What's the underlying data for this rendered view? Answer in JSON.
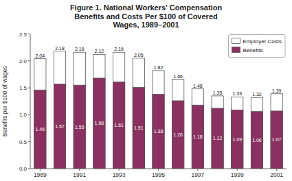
{
  "chart_data": {
    "type": "bar",
    "title": "Figure 1. National Workers' Compensation\nBenefits and Costs Per $100 of Covered\nWages, 1989–2001",
    "y_label": "Benefits per $100 of wages",
    "categories": [
      "1989",
      null,
      "1991",
      null,
      "1993",
      null,
      "1995",
      null,
      "1997",
      null,
      "1999",
      null,
      "2001"
    ],
    "series": [
      {
        "name": "Employer Costs",
        "color": "#ffffff",
        "values": [
          2.04,
          2.18,
          2.16,
          2.12,
          2.16,
          2.05,
          1.82,
          1.66,
          1.48,
          1.35,
          1.33,
          1.32,
          1.39
        ]
      },
      {
        "name": "Benefits",
        "color": "#8B3060",
        "values": [
          1.46,
          1.57,
          1.55,
          1.68,
          1.61,
          1.51,
          1.38,
          1.26,
          1.18,
          1.12,
          1.09,
          1.06,
          1.07
        ]
      }
    ],
    "stacked": false,
    "ylim": [
      0,
      2.5
    ],
    "yticks": [
      {
        "value": 0,
        "label": "0.0"
      },
      0.5,
      {
        "value": 1,
        "label": "1.0"
      },
      1.5,
      {
        "value": 2,
        "label": "2.0"
      },
      2.5
    ],
    "grid": false,
    "legend": "top-right",
    "data_labels": true
  }
}
